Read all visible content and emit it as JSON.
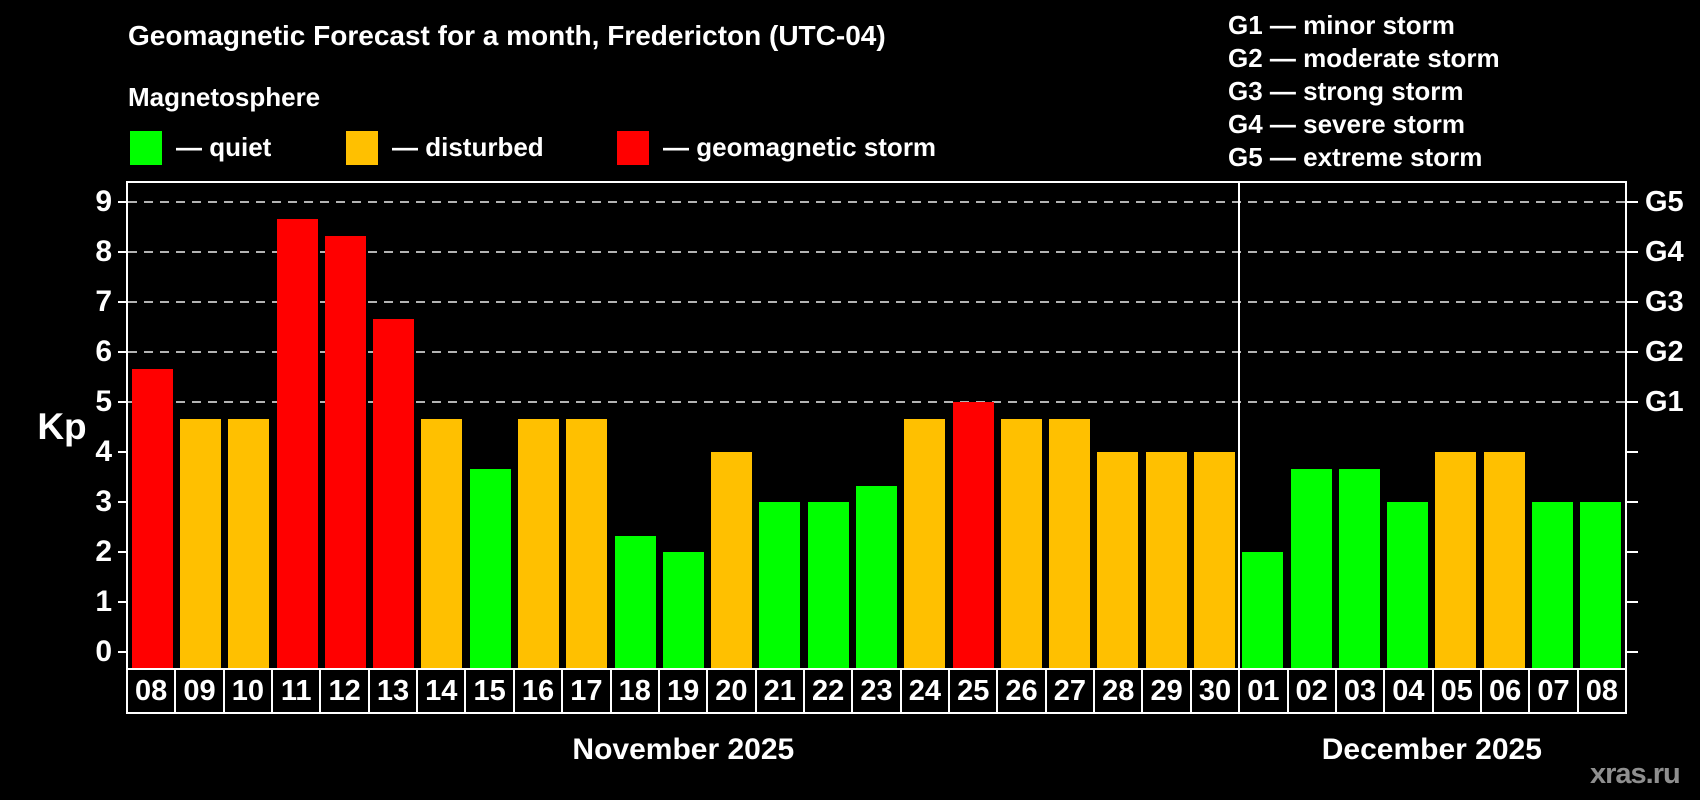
{
  "title": "Geomagnetic Forecast for a month, Fredericton (UTC-04)",
  "subtitle": "Magnetosphere",
  "watermark": "xras.ru",
  "legend": [
    {
      "key": "quiet",
      "label": "— quiet",
      "color": "#00ff00"
    },
    {
      "key": "disturbed",
      "label": "— disturbed",
      "color": "#ffc000"
    },
    {
      "key": "storm",
      "label": "— geomagnetic storm",
      "color": "#ff0000"
    }
  ],
  "g_legend": [
    "G1 — minor storm",
    "G2 — moderate storm",
    "G3 — strong storm",
    "G4 — severe storm",
    "G5 — extreme storm"
  ],
  "chart_data": {
    "type": "bar",
    "ylabel": "Kp",
    "ylim": [
      0,
      9
    ],
    "yticks": [
      0,
      1,
      2,
      3,
      4,
      5,
      6,
      7,
      8,
      9
    ],
    "gridlines": [
      5,
      6,
      7,
      8,
      9
    ],
    "right_axis_labels": [
      {
        "value": 5,
        "label": "G1"
      },
      {
        "value": 6,
        "label": "G2"
      },
      {
        "value": 7,
        "label": "G3"
      },
      {
        "value": 8,
        "label": "G4"
      },
      {
        "value": 9,
        "label": "G5"
      }
    ],
    "colors": {
      "quiet": "#00ff00",
      "disturbed": "#ffc000",
      "storm": "#ff0000"
    },
    "months": [
      {
        "label": "November 2025",
        "days": 23
      },
      {
        "label": "December 2025",
        "days": 8
      }
    ],
    "categories": [
      "08",
      "09",
      "10",
      "11",
      "12",
      "13",
      "14",
      "15",
      "16",
      "17",
      "18",
      "19",
      "20",
      "21",
      "22",
      "23",
      "24",
      "25",
      "26",
      "27",
      "28",
      "29",
      "30",
      "01",
      "02",
      "03",
      "04",
      "05",
      "06",
      "07",
      "08"
    ],
    "values": [
      5.67,
      4.67,
      4.67,
      8.67,
      8.33,
      6.67,
      4.67,
      3.67,
      4.67,
      4.67,
      2.33,
      2,
      4,
      3,
      3,
      3.33,
      4.67,
      5,
      4.67,
      4.67,
      4,
      4,
      4,
      2,
      3.67,
      3.67,
      3,
      4,
      4,
      3,
      3
    ],
    "statuses": [
      "storm",
      "disturbed",
      "disturbed",
      "storm",
      "storm",
      "storm",
      "disturbed",
      "quiet",
      "disturbed",
      "disturbed",
      "quiet",
      "quiet",
      "disturbed",
      "quiet",
      "quiet",
      "quiet",
      "disturbed",
      "storm",
      "disturbed",
      "disturbed",
      "disturbed",
      "disturbed",
      "disturbed",
      "quiet",
      "quiet",
      "quiet",
      "quiet",
      "disturbed",
      "disturbed",
      "quiet",
      "quiet"
    ]
  }
}
